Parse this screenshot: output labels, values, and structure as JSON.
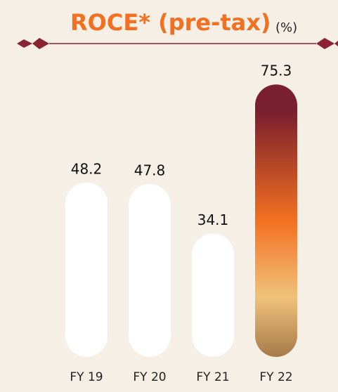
{
  "chart_data": {
    "type": "bar",
    "title": "ROCE* (pre-tax)",
    "unit_label": "(%)",
    "categories": [
      "FY 19",
      "FY 20",
      "FY 21",
      "FY 22"
    ],
    "values": [
      48.2,
      47.8,
      34.1,
      75.3
    ],
    "colors": [
      "#ffffff",
      "#ffffff",
      "#ffffff",
      "gradient"
    ],
    "gradient": [
      "#7a1f2e",
      "#f37021",
      "#f0c27a",
      "#a87a4a"
    ]
  }
}
